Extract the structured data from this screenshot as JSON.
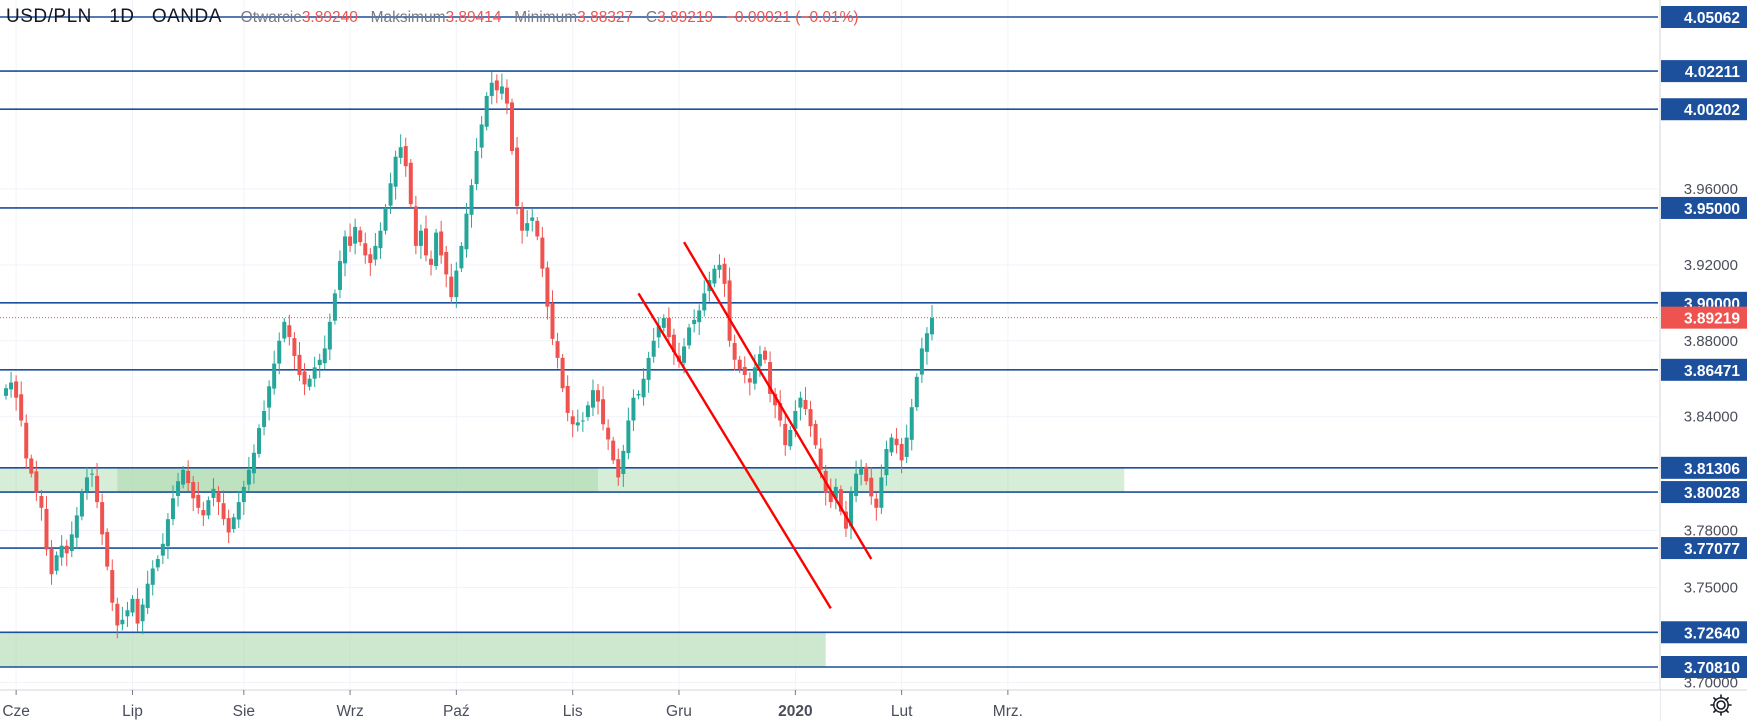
{
  "legend": {
    "symbol": "USD/PLN",
    "interval": "1D",
    "broker": "OANDA",
    "open_label": "Otwarcie",
    "open_value": "3.89240",
    "high_label": "Maksimum",
    "high_value": "3.89414",
    "low_label": "Minimum",
    "low_value": "3.88327",
    "close_label": "C",
    "close_value": "3.89219",
    "change": "−0.00021 (−0.01%)"
  },
  "settings_icon": "gear-icon",
  "chart_data": {
    "type": "candlestick",
    "title": "",
    "colors": {
      "up": "#26a69a",
      "down": "#ef5350",
      "level": "#1c4f9c",
      "zone": "#a5d6a7",
      "channel": "#ff0000",
      "current": "#ef5350"
    },
    "ylim": [
      3.7,
      4.06
    ],
    "y_ticks": [
      "3.70000",
      "3.75000",
      "3.78000",
      "3.84000",
      "3.88000",
      "3.92000",
      "3.96000"
    ],
    "x_ticks": [
      "Cze",
      "Lip",
      "Sie",
      "Wrz",
      "Paź",
      "Lis",
      "Gru",
      "2020",
      "Lut",
      "Mrz."
    ],
    "x_tick_indices": [
      2,
      25,
      47,
      68,
      89,
      112,
      133,
      156,
      177,
      198
    ],
    "levels": [
      {
        "label": "4.05062",
        "value": 4.05062
      },
      {
        "label": "4.02211",
        "value": 4.02211
      },
      {
        "label": "4.00202",
        "value": 4.00202
      },
      {
        "label": "3.95000",
        "value": 3.95
      },
      {
        "label": "3.90000",
        "value": 3.9
      },
      {
        "label": "3.86471",
        "value": 3.86471
      },
      {
        "label": "3.81306",
        "value": 3.81306
      },
      {
        "label": "3.80028",
        "value": 3.80028
      },
      {
        "label": "3.77077",
        "value": 3.77077
      },
      {
        "label": "3.72640",
        "value": 3.7264
      },
      {
        "label": "3.70810",
        "value": 3.7081
      }
    ],
    "current_price": {
      "label": "3.89219",
      "value": 3.89219
    },
    "zones": [
      {
        "top": 3.81306,
        "bottom": 3.80028,
        "from": 0,
        "to": 221,
        "strong_from": 22,
        "strong_to": 117
      },
      {
        "top": 3.7264,
        "bottom": 3.7081,
        "from": 0,
        "to": 162
      }
    ],
    "channel": [
      {
        "from": [
          134,
          3.932
        ],
        "to": [
          171,
          3.765
        ]
      },
      {
        "from": [
          125,
          3.905
        ],
        "to": [
          163,
          3.739
        ]
      }
    ],
    "closes": [
      3.855,
      3.858,
      3.85,
      3.838,
      3.818,
      3.81,
      3.8,
      3.792,
      3.77,
      3.757,
      3.767,
      3.772,
      3.768,
      3.778,
      3.788,
      3.8,
      3.808,
      3.81,
      3.795,
      3.778,
      3.761,
      3.742,
      3.73,
      3.733,
      3.738,
      3.744,
      3.731,
      3.741,
      3.752,
      3.76,
      3.765,
      3.773,
      3.786,
      3.797,
      3.806,
      3.812,
      3.805,
      3.797,
      3.792,
      3.788,
      3.796,
      3.802,
      3.795,
      3.786,
      3.779,
      3.787,
      3.795,
      3.803,
      3.812,
      3.821,
      3.834,
      3.843,
      3.856,
      3.868,
      3.88,
      3.89,
      3.882,
      3.872,
      3.862,
      3.857,
      3.86,
      3.866,
      3.87,
      3.876,
      3.89,
      3.905,
      3.922,
      3.935,
      3.93,
      3.94,
      3.932,
      3.925,
      3.921,
      3.93,
      3.938,
      3.95,
      3.963,
      3.977,
      3.982,
      3.972,
      3.952,
      3.93,
      3.938,
      3.925,
      3.92,
      3.937,
      3.925,
      3.915,
      3.903,
      3.917,
      3.93,
      3.947,
      3.962,
      3.98,
      3.994,
      4.009,
      4.016,
      4.012,
      4.014,
      4.005,
      3.98,
      3.951,
      3.938,
      3.942,
      3.945,
      3.935,
      3.918,
      3.898,
      3.881,
      3.871,
      3.855,
      3.842,
      3.836,
      3.837,
      3.838,
      3.846,
      3.854,
      3.848,
      3.836,
      3.828,
      3.817,
      3.808,
      3.822,
      3.838,
      3.85,
      3.852,
      3.86,
      3.871,
      3.88,
      3.888,
      3.892,
      3.882,
      3.874,
      3.869,
      3.877,
      3.887,
      3.891,
      3.896,
      3.905,
      3.912,
      3.918,
      3.92,
      3.91,
      3.88,
      3.87,
      3.865,
      3.862,
      3.858,
      3.866,
      3.873,
      3.87,
      3.852,
      3.846,
      3.838,
      3.825,
      3.833,
      3.843,
      3.85,
      3.844,
      3.835,
      3.825,
      3.812,
      3.8,
      3.795,
      3.803,
      3.79,
      3.781,
      3.8,
      3.81,
      3.813,
      3.806,
      3.798,
      3.792,
      3.808,
      3.823,
      3.829,
      3.825,
      3.817,
      3.829,
      3.845,
      3.861,
      3.876,
      3.884,
      3.892
    ]
  }
}
